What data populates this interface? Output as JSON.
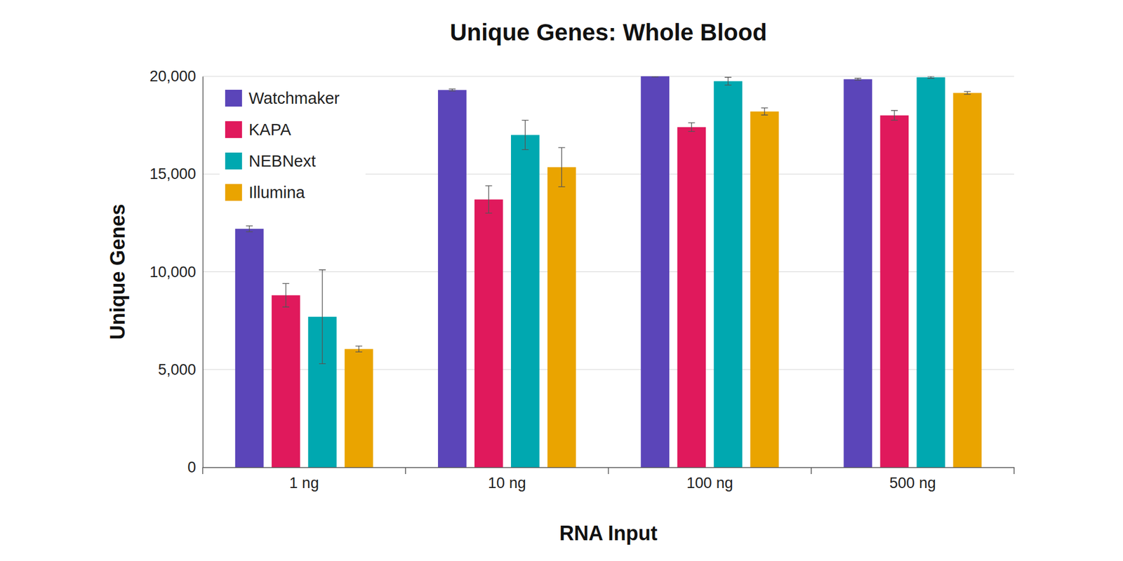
{
  "chart_data": {
    "type": "bar",
    "title": "Unique Genes: Whole Blood",
    "x_label": "RNA Input",
    "y_label": "Unique Genes",
    "categories": [
      "1 ng",
      "10 ng",
      "100 ng",
      "500 ng"
    ],
    "series": [
      {
        "name": "Watchmaker",
        "color": "#5b45b9",
        "values": [
          12200,
          19300,
          20000,
          19850
        ],
        "errors": [
          150,
          50,
          30,
          50
        ]
      },
      {
        "name": "KAPA",
        "color": "#e0195c",
        "values": [
          8800,
          13700,
          17400,
          18000
        ],
        "errors": [
          600,
          700,
          220,
          250
        ]
      },
      {
        "name": "NEBNext",
        "color": "#00a8b0",
        "values": [
          7700,
          17000,
          19750,
          19950
        ],
        "errors": [
          2400,
          750,
          200,
          50
        ]
      },
      {
        "name": "Illumina",
        "color": "#eaa400",
        "values": [
          6050,
          15350,
          18200,
          19150
        ],
        "errors": [
          150,
          1000,
          180,
          70
        ]
      }
    ],
    "ylim": [
      0,
      20000
    ],
    "yticks": [
      0,
      {
        "value": 5000,
        "label": "5,000"
      },
      {
        "value": 10000,
        "label": "10,000"
      },
      {
        "value": 15000,
        "label": "15,000"
      },
      {
        "value": 20000,
        "label": "20,000"
      }
    ],
    "grid": true,
    "legend": "upper left"
  }
}
